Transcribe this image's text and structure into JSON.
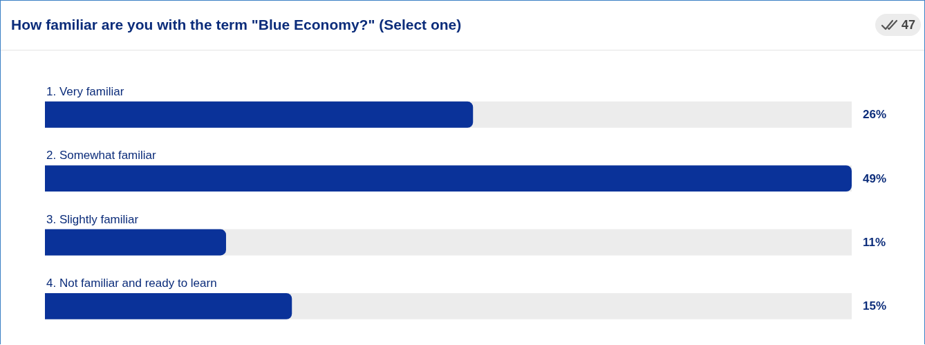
{
  "chart_data": {
    "type": "bar",
    "orientation": "horizontal",
    "title": "How familiar are you with the term \"Blue Economy?\" (Select one)",
    "categories": [
      "1. Very familiar",
      "2. Somewhat familiar",
      "3. Slightly familiar",
      "4. Not familiar and ready to learn"
    ],
    "values": [
      26,
      49,
      11,
      15
    ],
    "value_labels": [
      "26%",
      "49%",
      "11%",
      "15%"
    ],
    "color": "#0a3299",
    "xlim": [
      0,
      49
    ],
    "grid": false,
    "legend": false,
    "annotations": [
      "47"
    ]
  }
}
